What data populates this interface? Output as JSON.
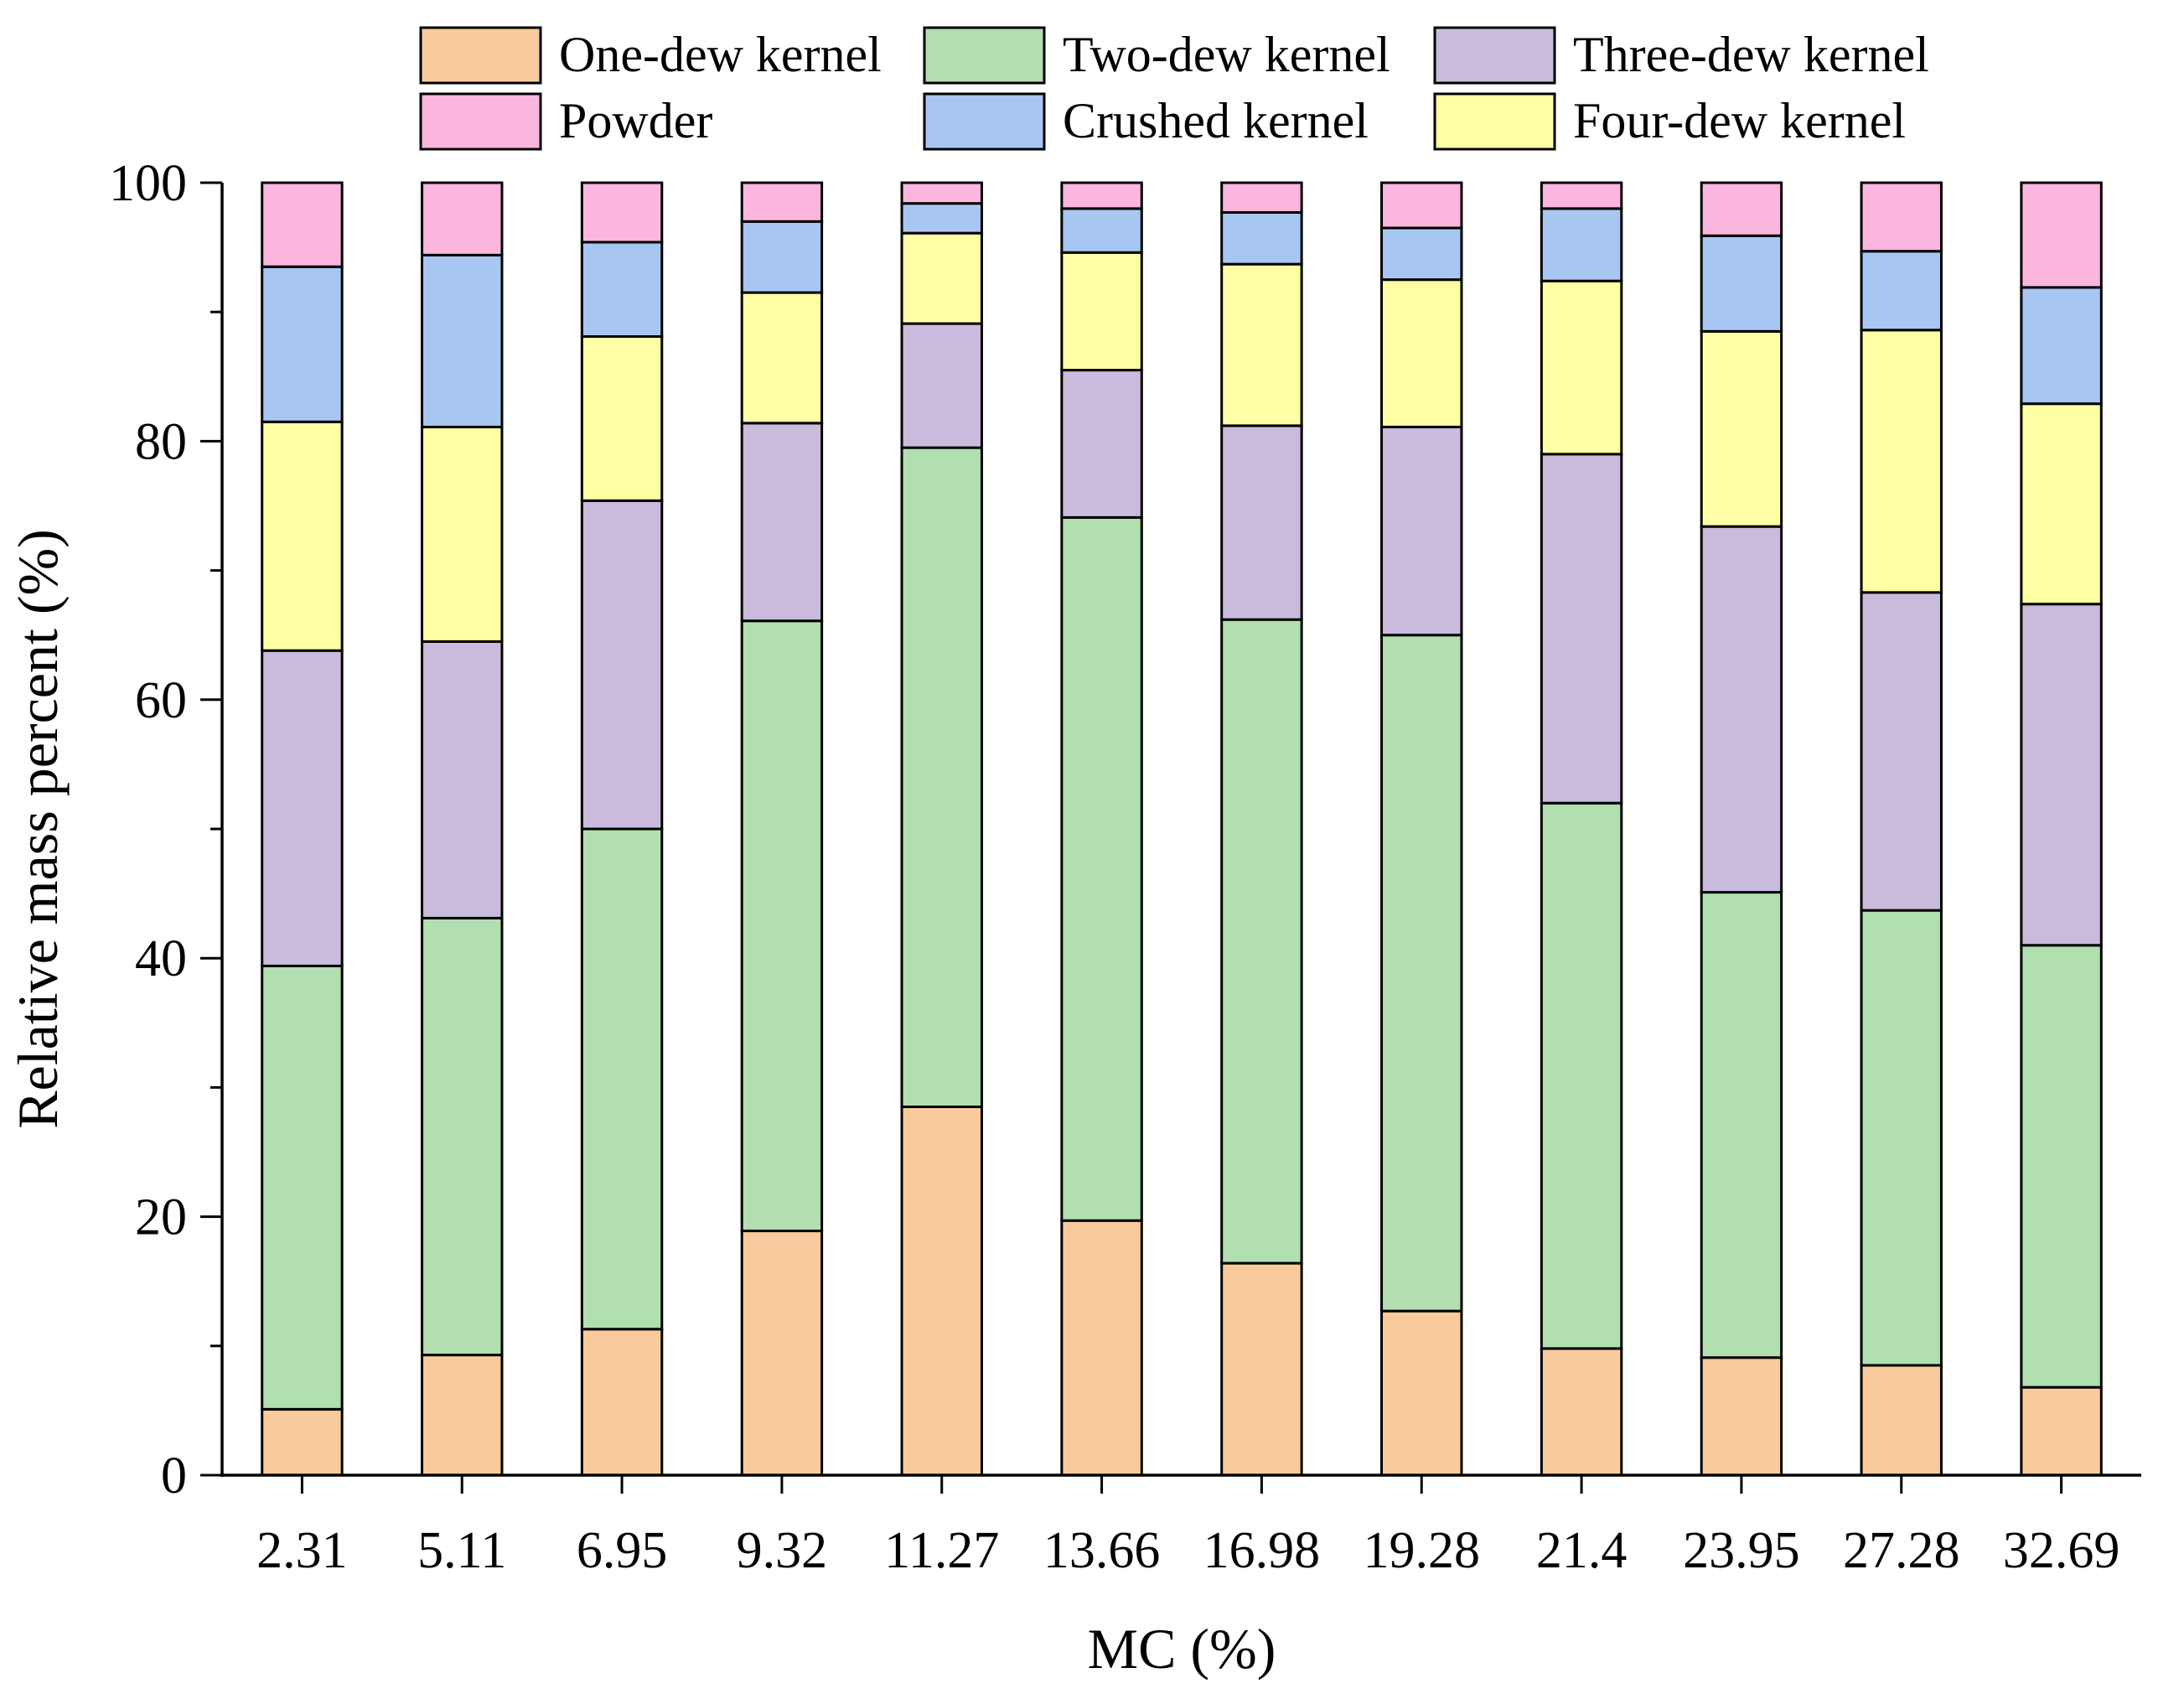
{
  "chart_data": {
    "type": "bar",
    "stacked": true,
    "title": "",
    "xlabel": "MC (%)",
    "ylabel": "Relative mass percent (%)",
    "ylim": [
      0,
      100
    ],
    "yticks": [
      "0",
      "20",
      "40",
      "60",
      "80",
      "100"
    ],
    "grid": false,
    "legend_position": "top",
    "categories": [
      "2.31",
      "5.11",
      "6.95",
      "9.32",
      "11.27",
      "13.66",
      "16.98",
      "19.28",
      "21.4",
      "23.95",
      "27.28",
      "32.69"
    ],
    "series": [
      {
        "name": "One-dew kernel",
        "color": "#F9CB9C",
        "values": [
          5.1,
          9.3,
          11.3,
          18.9,
          28.5,
          19.7,
          16.4,
          12.7,
          9.8,
          9.1,
          8.5,
          6.8
        ]
      },
      {
        "name": "Two-dew kernel",
        "color": "#B1DFB0",
        "values": [
          34.3,
          33.8,
          38.7,
          47.2,
          51.0,
          54.4,
          49.8,
          52.3,
          42.2,
          36.0,
          35.2,
          34.2
        ]
      },
      {
        "name": "Three-dew kernel",
        "color": "#C9BBDB",
        "values": [
          24.4,
          21.4,
          25.4,
          15.3,
          9.6,
          11.4,
          15.0,
          16.1,
          27.0,
          28.3,
          24.6,
          26.4
        ]
      },
      {
        "name": "Four-dew kernel",
        "color": "#FEFEA5",
        "values": [
          17.7,
          16.6,
          12.7,
          10.1,
          7.0,
          9.1,
          12.5,
          11.4,
          13.4,
          15.1,
          20.3,
          15.5
        ]
      },
      {
        "name": "Crushed kernel",
        "color": "#A8C6F2",
        "values": [
          12.0,
          13.3,
          7.3,
          5.5,
          2.3,
          3.4,
          4.0,
          4.0,
          5.6,
          7.4,
          6.1,
          9.0
        ]
      },
      {
        "name": "Powder",
        "color": "#FBB6DE",
        "values": [
          6.5,
          5.6,
          4.6,
          3.0,
          1.6,
          2.0,
          2.3,
          3.5,
          2.0,
          4.1,
          5.3,
          8.1
        ]
      }
    ]
  }
}
